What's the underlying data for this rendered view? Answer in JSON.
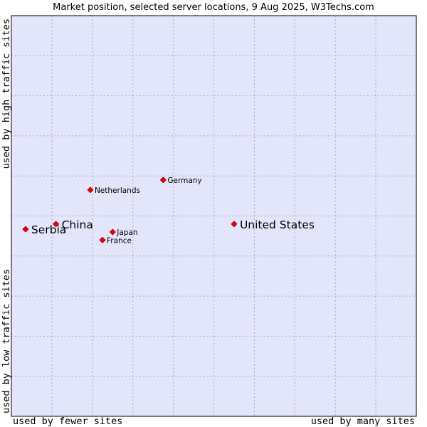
{
  "chart_data": {
    "type": "scatter",
    "title": "Market position, selected server locations, 9 Aug 2025, W3Techs.com",
    "xlabel_left": "used by fewer sites",
    "xlabel_right": "used by many sites",
    "ylabel_top": "used by high traffic sites",
    "ylabel_bottom": "used by low traffic sites",
    "xlim": [
      0,
      10
    ],
    "ylim": [
      0,
      10
    ],
    "grid": true,
    "colors": {
      "plot_bg": "#e3e6fa",
      "grid": "#aaaacc",
      "border": "#000000",
      "marker": "#ee0000",
      "marker_edge": "#990000"
    },
    "points": [
      {
        "label": "United States",
        "x": 5.5,
        "y": 4.8,
        "emphasis": "large"
      },
      {
        "label": "Germany",
        "x": 3.75,
        "y": 5.9,
        "emphasis": "small"
      },
      {
        "label": "Netherlands",
        "x": 1.95,
        "y": 5.65,
        "emphasis": "small"
      },
      {
        "label": "China",
        "x": 1.1,
        "y": 4.8,
        "emphasis": "large"
      },
      {
        "label": "Serbia",
        "x": 0.35,
        "y": 4.67,
        "emphasis": "large"
      },
      {
        "label": "Japan",
        "x": 2.5,
        "y": 4.6,
        "emphasis": "small"
      },
      {
        "label": "France",
        "x": 2.25,
        "y": 4.4,
        "emphasis": "small"
      }
    ]
  }
}
